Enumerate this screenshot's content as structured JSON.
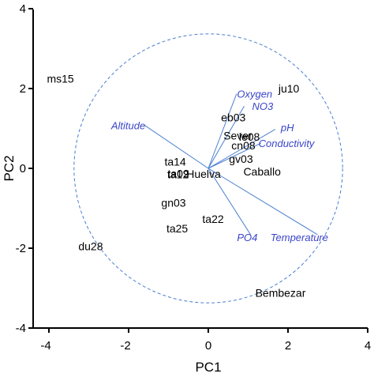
{
  "chart_data": {
    "type": "scatter",
    "xlabel": "PC1",
    "ylabel": "PC2",
    "xlim": [
      -4,
      4
    ],
    "ylim": [
      -4,
      4
    ],
    "x_ticks": [
      "-4",
      "-2",
      "0",
      "2",
      "4"
    ],
    "y_ticks": [
      "4",
      "2",
      "0",
      "-2",
      "-4"
    ],
    "circle_radius": 3.37,
    "colors": {
      "vectors": "#4a7fd0",
      "variable_labels": "#3a45c8",
      "points": "#000000"
    },
    "variables": [
      {
        "label": "Oxygen",
        "x": 0.71,
        "y": 1.87,
        "lx": 0.72,
        "ly": 1.87,
        "anchor": "start"
      },
      {
        "label": "NO3",
        "x": 0.9,
        "y": 1.56,
        "lx": 1.1,
        "ly": 1.56,
        "anchor": "start"
      },
      {
        "label": "pH",
        "x": 1.68,
        "y": 0.98,
        "lx": 1.82,
        "ly": 1.03,
        "anchor": "start"
      },
      {
        "label": "Conductivity",
        "x": 1.32,
        "y": 0.63,
        "lx": 1.26,
        "ly": 0.63,
        "anchor": "start"
      },
      {
        "label": "Altitude",
        "x": -1.6,
        "y": 1.08,
        "lx": -1.58,
        "ly": 1.08,
        "anchor": "end"
      },
      {
        "label": "PO4",
        "x": 1.06,
        "y": -1.66,
        "lx": 0.72,
        "ly": -1.72,
        "anchor": "start"
      },
      {
        "label": "Temperature",
        "x": 2.74,
        "y": -1.66,
        "lx": 1.56,
        "ly": -1.72,
        "anchor": "start"
      }
    ],
    "sites": [
      {
        "label": "ms15",
        "x": -4.05,
        "y": 2.25
      },
      {
        "label": "ju10",
        "x": 1.76,
        "y": 2.0
      },
      {
        "label": "eb03",
        "x": 0.32,
        "y": 1.28
      },
      {
        "label": "Sever",
        "x": 0.38,
        "y": 0.82
      },
      {
        "label": "le08",
        "x": 0.77,
        "y": 0.79
      },
      {
        "label": "cn08",
        "x": 0.58,
        "y": 0.57
      },
      {
        "label": "gv03",
        "x": 0.52,
        "y": 0.24
      },
      {
        "label": "Caballo",
        "x": 0.88,
        "y": -0.08
      },
      {
        "label": "Huelva",
        "x": -0.55,
        "y": -0.14
      },
      {
        "label": "ta14",
        "x": -1.1,
        "y": 0.17
      },
      {
        "label": "ta09",
        "x": -1.02,
        "y": -0.13
      },
      {
        "label": "ta12",
        "x": -1.03,
        "y": -0.15
      },
      {
        "label": "gn03",
        "x": -1.18,
        "y": -0.86
      },
      {
        "label": "ta22",
        "x": -0.15,
        "y": -1.27
      },
      {
        "label": "ta25",
        "x": -1.05,
        "y": -1.5
      },
      {
        "label": "du28",
        "x": -3.26,
        "y": -1.95
      },
      {
        "label": "Bembezar",
        "x": 1.18,
        "y": -3.12
      }
    ]
  }
}
